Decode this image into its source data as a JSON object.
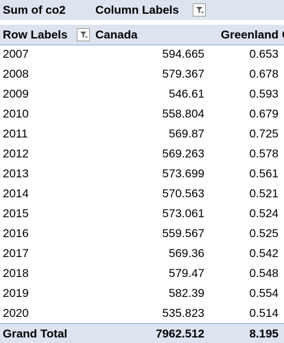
{
  "pivot": {
    "value_field": "Sum of co2",
    "column_labels": "Column Labels",
    "row_labels": "Row Labels",
    "columns": [
      "Canada",
      "Greenland"
    ],
    "extra_col_fragment": "G",
    "rows": [
      {
        "label": "2007",
        "values": [
          "594.665",
          "0.653"
        ]
      },
      {
        "label": "2008",
        "values": [
          "579.367",
          "0.678"
        ]
      },
      {
        "label": "2009",
        "values": [
          "546.61",
          "0.593"
        ]
      },
      {
        "label": "2010",
        "values": [
          "558.804",
          "0.679"
        ]
      },
      {
        "label": "2011",
        "values": [
          "569.87",
          "0.725"
        ]
      },
      {
        "label": "2012",
        "values": [
          "569.263",
          "0.578"
        ]
      },
      {
        "label": "2013",
        "values": [
          "573.699",
          "0.561"
        ]
      },
      {
        "label": "2014",
        "values": [
          "570.563",
          "0.521"
        ]
      },
      {
        "label": "2015",
        "values": [
          "573.061",
          "0.524"
        ]
      },
      {
        "label": "2016",
        "values": [
          "559.567",
          "0.525"
        ]
      },
      {
        "label": "2017",
        "values": [
          "569.36",
          "0.542"
        ]
      },
      {
        "label": "2018",
        "values": [
          "579.47",
          "0.548"
        ]
      },
      {
        "label": "2019",
        "values": [
          "582.39",
          "0.554"
        ]
      },
      {
        "label": "2020",
        "values": [
          "535.823",
          "0.514"
        ]
      }
    ],
    "grand_total": {
      "label": "Grand Total",
      "values": [
        "7962.512",
        "8.195"
      ]
    }
  },
  "icons": {
    "column_filter": "filter-dropdown-icon",
    "row_filter": "filter-dropdown-icon"
  },
  "colors": {
    "header_fill": "#dde4f0",
    "header_line": "#8ea9db"
  }
}
